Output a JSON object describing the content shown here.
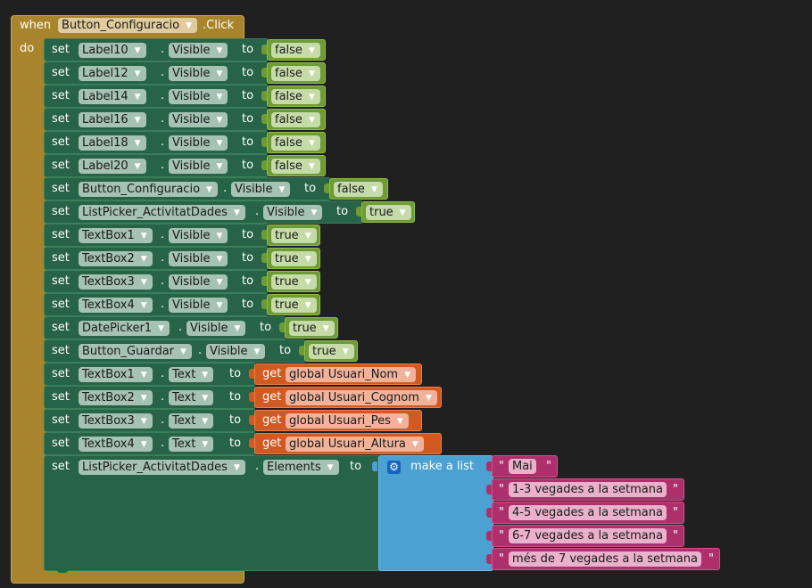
{
  "event": {
    "when_label": "when",
    "component": "Button_Configuracio",
    "event_name": ".Click",
    "do_label": "do"
  },
  "words": {
    "set": "set",
    "dot": ".",
    "to": "to",
    "get": "get"
  },
  "setters": [
    {
      "component": "Label10",
      "property": "Visible",
      "kind": "bool",
      "value": "false"
    },
    {
      "component": "Label12",
      "property": "Visible",
      "kind": "bool",
      "value": "false"
    },
    {
      "component": "Label14",
      "property": "Visible",
      "kind": "bool",
      "value": "false"
    },
    {
      "component": "Label16",
      "property": "Visible",
      "kind": "bool",
      "value": "false"
    },
    {
      "component": "Label18",
      "property": "Visible",
      "kind": "bool",
      "value": "false"
    },
    {
      "component": "Label20",
      "property": "Visible",
      "kind": "bool",
      "value": "false"
    },
    {
      "component": "Button_Configuracio",
      "property": "Visible",
      "kind": "bool",
      "value": "false"
    },
    {
      "component": "ListPicker_ActivitatDades",
      "property": "Visible",
      "kind": "bool",
      "value": "true"
    },
    {
      "component": "TextBox1",
      "property": "Visible",
      "kind": "bool",
      "value": "true"
    },
    {
      "component": "TextBox2",
      "property": "Visible",
      "kind": "bool",
      "value": "true"
    },
    {
      "component": "TextBox3",
      "property": "Visible",
      "kind": "bool",
      "value": "true"
    },
    {
      "component": "TextBox4",
      "property": "Visible",
      "kind": "bool",
      "value": "true"
    },
    {
      "component": "DatePicker1",
      "property": "Visible",
      "kind": "bool",
      "value": "true"
    },
    {
      "component": "Button_Guardar",
      "property": "Visible",
      "kind": "bool",
      "value": "true"
    },
    {
      "component": "TextBox1",
      "property": "Text",
      "kind": "get",
      "value": "global Usuari_Nom"
    },
    {
      "component": "TextBox2",
      "property": "Text",
      "kind": "get",
      "value": "global Usuari_Cognom"
    },
    {
      "component": "TextBox3",
      "property": "Text",
      "kind": "get",
      "value": "global Usuari_Pes"
    },
    {
      "component": "TextBox4",
      "property": "Text",
      "kind": "get",
      "value": "global Usuari_Altura"
    }
  ],
  "list_setter": {
    "component": "ListPicker_ActivitatDades",
    "property": "Elements",
    "make_list_label": "make a list",
    "items": [
      "Mai",
      "1-3 vegades a la setmana",
      "4-5 vegades a la setmana",
      "6-7 vegades a la setmana",
      "més de 7 vegades a la setmana"
    ]
  },
  "quote": "\"",
  "colors": {
    "background": "#202020",
    "event_block": "#a8842c",
    "setter_block": "#276346",
    "logic_block": "#6e9b33",
    "variable_block": "#d15a22",
    "list_block": "#4aa1d2",
    "text_block": "#ad2f6c"
  },
  "icons": {
    "dropdown": "triangle-down",
    "mutator": "gear-icon"
  }
}
